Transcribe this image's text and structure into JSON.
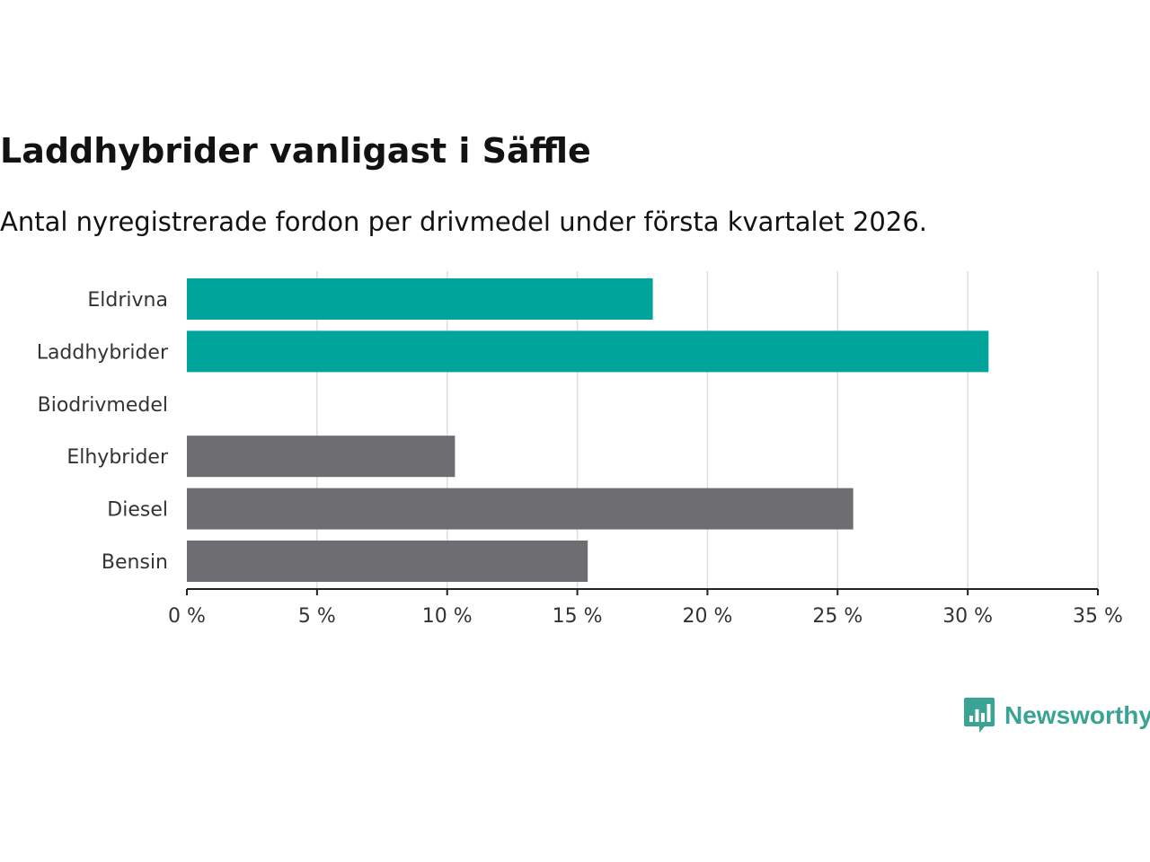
{
  "header": {
    "title": "Laddhybrider vanligast i Säffle",
    "subtitle": "Antal nyregistrerade fordon per drivmedel under första kvartalet 2026."
  },
  "brand": {
    "name": "Newsworthy",
    "icon": "newsworthy-logo-icon"
  },
  "colors": {
    "highlight": "#00a49a",
    "muted": "#6e6d72",
    "grid": "#dddddd",
    "axis": "#222222"
  },
  "chart_data": {
    "type": "bar",
    "orientation": "horizontal",
    "categories": [
      "Eldrivna",
      "Laddhybrider",
      "Biodrivmedel",
      "Elhybrider",
      "Diesel",
      "Bensin"
    ],
    "values": [
      17.9,
      30.8,
      0,
      10.3,
      25.6,
      15.4
    ],
    "highlighted": [
      true,
      true,
      true,
      false,
      false,
      false
    ],
    "xlim": [
      0,
      35
    ],
    "xticks": [
      0,
      5,
      10,
      15,
      20,
      25,
      30,
      35
    ],
    "xtick_labels": [
      "0 %",
      "5 %",
      "10 %",
      "15 %",
      "20 %",
      "25 %",
      "30 %",
      "35 %"
    ],
    "grid": true,
    "xlabel": "",
    "ylabel": ""
  }
}
